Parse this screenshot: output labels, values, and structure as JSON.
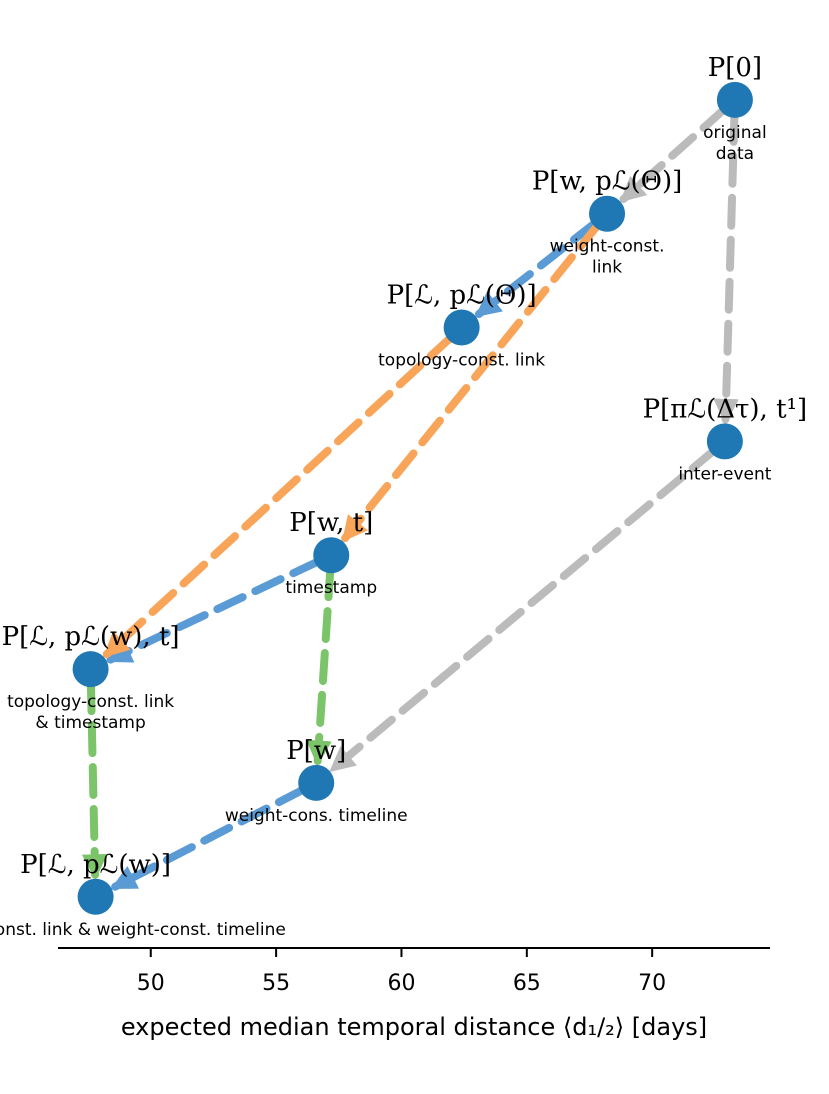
{
  "chart_data": {
    "type": "scatter",
    "title": "",
    "xlabel": "expected median temporal distance ⟨d₁/₂⟩ [days]",
    "ylabel": "",
    "xlim": [
      46.3,
      74.7
    ],
    "xticks": [
      50,
      55,
      60,
      65,
      70
    ],
    "x_axis_only": true,
    "grid": false,
    "colors": {
      "node": "#1f77b4",
      "gray": "#bbbbbb",
      "blue": "#5b9bd5",
      "orange": "#f8a55a",
      "green": "#7cc46a"
    },
    "points": [
      {
        "id": "p0",
        "x": 73.3,
        "y": 8.2,
        "label": "P[0]",
        "sublabel": "original data"
      },
      {
        "id": "pw_theta",
        "x": 68.2,
        "y": 7.2,
        "label": "P[w, pℒ(Θ)]",
        "sublabel": "weight-const. link"
      },
      {
        "id": "pl_theta",
        "x": 62.4,
        "y": 6.2,
        "label": "P[ℒ, pℒ(Θ)]",
        "sublabel": "topology-const. link"
      },
      {
        "id": "ppi",
        "x": 72.9,
        "y": 5.2,
        "label": "P[πℒ(Δτ), t¹]",
        "sublabel": "inter-event"
      },
      {
        "id": "pwt",
        "x": 57.2,
        "y": 4.2,
        "label": "P[w, t]",
        "sublabel": "timestamp"
      },
      {
        "id": "pl_wt",
        "x": 47.6,
        "y": 3.2,
        "label": "P[ℒ, pℒ(w), t]",
        "sublabel": "topology-const. link & timestamp"
      },
      {
        "id": "pw",
        "x": 56.6,
        "y": 2.2,
        "label": "P[w]",
        "sublabel": "weight-cons. timeline"
      },
      {
        "id": "pl_w",
        "x": 47.8,
        "y": 1.2,
        "label": "P[ℒ, pℒ(w)]",
        "sublabel": "topology-const. link & weight-const. timeline"
      }
    ],
    "edges": [
      {
        "from": "p0",
        "to": "pw_theta",
        "color": "gray"
      },
      {
        "from": "p0",
        "to": "ppi",
        "color": "gray"
      },
      {
        "from": "ppi",
        "to": "pw",
        "color": "gray"
      },
      {
        "from": "pw_theta",
        "to": "pl_theta",
        "color": "blue"
      },
      {
        "from": "pwt",
        "to": "pl_wt",
        "color": "blue"
      },
      {
        "from": "pw",
        "to": "pl_w",
        "color": "blue"
      },
      {
        "from": "pw_theta",
        "to": "pwt",
        "color": "orange"
      },
      {
        "from": "pl_theta",
        "to": "pl_wt",
        "color": "orange"
      },
      {
        "from": "pwt",
        "to": "pw",
        "color": "green"
      },
      {
        "from": "pl_wt",
        "to": "pl_w",
        "color": "green"
      }
    ]
  }
}
